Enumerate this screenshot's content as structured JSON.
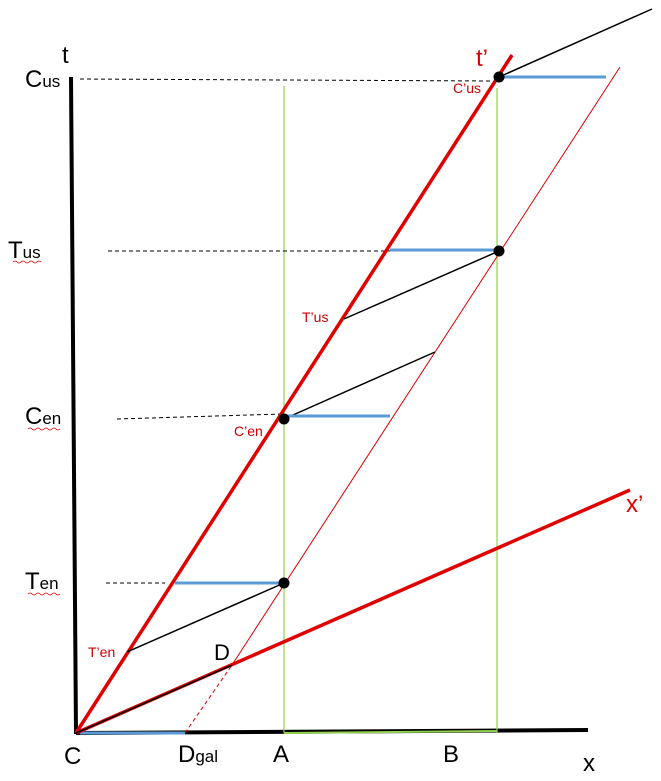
{
  "axis_labels": {
    "t": "t",
    "x": "x",
    "t_prime": "t’",
    "x_prime": "x’"
  },
  "t_axis_labels": {
    "c_us": {
      "main": "C",
      "sub": "us"
    },
    "t_us": {
      "main": "T",
      "sub": "us"
    },
    "c_en": {
      "main": "C",
      "sub": "en"
    },
    "t_en": {
      "main": "T",
      "sub": "en"
    }
  },
  "x_axis_labels": {
    "origin": "C",
    "d_gal": {
      "main": "D",
      "sub": "gal"
    },
    "a": "A",
    "b": "B"
  },
  "event_labels": {
    "c_prime_us": "C’us",
    "t_prime_us": "T’us",
    "c_prime_en": "C’en",
    "t_prime_en": "T’en",
    "d": "D"
  },
  "colors": {
    "axis": "#000000",
    "primed_axis": "#e00000",
    "primed_text": "#d00000",
    "light_path": "#000000",
    "simultaneity_segment": "#5b9bd5",
    "worldline": "#92d050",
    "event_dot": "#000000"
  }
}
